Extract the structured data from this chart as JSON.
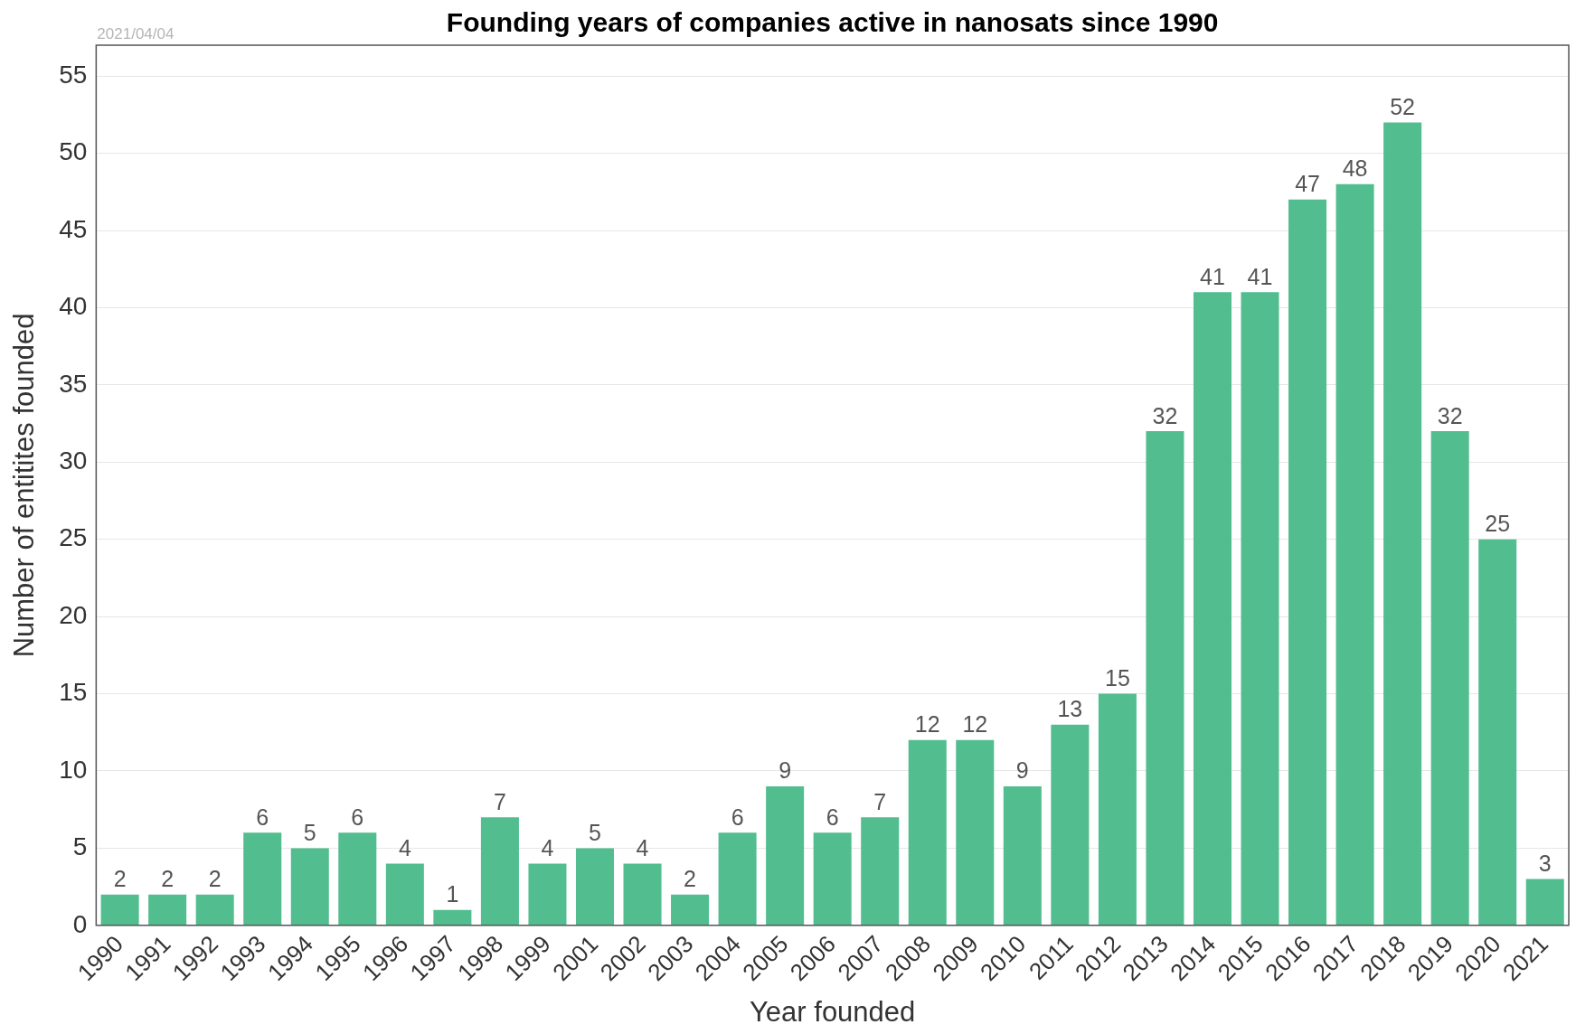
{
  "chart_data": {
    "type": "bar",
    "title": "Founding years of companies active in nanosats since 1990",
    "xlabel": "Year founded",
    "ylabel": "Number of entitites founded",
    "annotations": [
      "2021/04/04"
    ],
    "categories": [
      "1990",
      "1991",
      "1992",
      "1993",
      "1994",
      "1995",
      "1996",
      "1997",
      "1998",
      "1999",
      "2001",
      "2002",
      "2003",
      "2004",
      "2005",
      "2006",
      "2007",
      "2008",
      "2009",
      "2010",
      "2011",
      "2012",
      "2013",
      "2014",
      "2015",
      "2016",
      "2017",
      "2018",
      "2019",
      "2020",
      "2021"
    ],
    "values": [
      2,
      2,
      2,
      6,
      5,
      6,
      4,
      1,
      7,
      4,
      5,
      4,
      2,
      6,
      9,
      6,
      7,
      12,
      12,
      9,
      13,
      15,
      32,
      41,
      41,
      47,
      48,
      52,
      32,
      25,
      3
    ],
    "color": "#52bd8f",
    "ylim": [
      0,
      57
    ],
    "yticks": [
      0,
      5,
      10,
      15,
      20,
      25,
      30,
      35,
      40,
      45,
      50,
      55
    ],
    "grid": "y",
    "data_labels": true
  }
}
